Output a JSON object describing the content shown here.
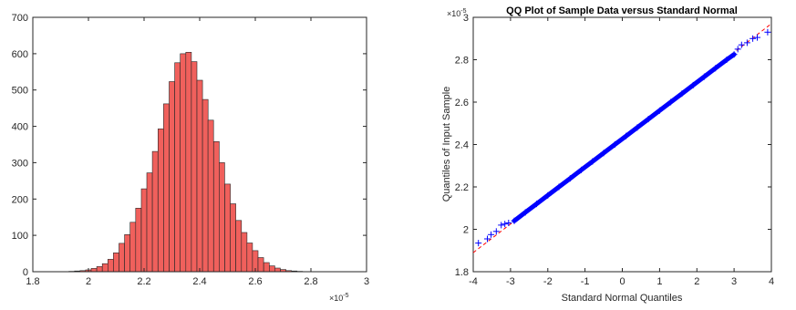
{
  "chart_data": [
    {
      "type": "bar",
      "subtype": "histogram",
      "title": "",
      "xlabel": "",
      "ylabel": "",
      "bar_color": "#f0605c",
      "edge_color": "#262626",
      "x_exponent": "×10",
      "x_exponent_power": "-5",
      "xlim": [
        1.8,
        3.0
      ],
      "ylim": [
        0,
        700
      ],
      "x_ticks": [
        "1.8",
        "2",
        "2.2",
        "2.4",
        "2.6",
        "2.8",
        "3"
      ],
      "x_tick_values": [
        1.8,
        2.0,
        2.2,
        2.4,
        2.6,
        2.8,
        3.0
      ],
      "y_ticks": [
        "0",
        "100",
        "200",
        "300",
        "400",
        "500",
        "600",
        "700"
      ],
      "y_tick_values": [
        0,
        100,
        200,
        300,
        400,
        500,
        600,
        700
      ],
      "bin_start": 1.93,
      "bin_width": 0.02,
      "values": [
        1,
        2,
        3,
        5,
        9,
        14,
        22,
        34,
        52,
        78,
        102,
        136,
        175,
        228,
        272,
        331,
        393,
        462,
        523,
        575,
        600,
        604,
        578,
        527,
        474,
        417,
        358,
        300,
        241,
        187,
        141,
        108,
        79,
        58,
        39,
        25,
        16,
        10,
        6,
        3,
        2,
        1
      ],
      "grid": false,
      "legend": "none"
    },
    {
      "type": "scatter",
      "subtype": "qq-plot",
      "title": "QQ Plot of Sample Data versus Standard Normal",
      "xlabel": "Standard Normal Quantiles",
      "ylabel": "Quantiles of Input Sample",
      "marker_color": "#0000ff",
      "line_color": "#ff0000",
      "y_exponent": "×10",
      "y_exponent_power": "-5",
      "xlim": [
        -4,
        4
      ],
      "ylim": [
        1.8,
        3.0
      ],
      "x_ticks": [
        "-4",
        "-3",
        "-2",
        "-1",
        "0",
        "1",
        "2",
        "3",
        "4"
      ],
      "x_tick_values": [
        -4,
        -3,
        -2,
        -1,
        0,
        1,
        2,
        3,
        4
      ],
      "y_ticks": [
        "1.8",
        "2",
        "2.2",
        "2.4",
        "2.6",
        "2.8",
        "3"
      ],
      "y_tick_values": [
        1.8,
        2.0,
        2.2,
        2.4,
        2.6,
        2.8,
        3.0
      ],
      "reference_line": {
        "slope": 0.135,
        "intercept": 2.43,
        "x_range": [
          -4,
          4
        ]
      },
      "points": [
        {
          "x": -3.86,
          "y": 1.935
        },
        {
          "x": -3.62,
          "y": 1.955
        },
        {
          "x": -3.52,
          "y": 1.975
        },
        {
          "x": -3.38,
          "y": 1.99
        },
        {
          "x": -3.25,
          "y": 2.02
        },
        {
          "x": -3.15,
          "y": 2.025
        },
        {
          "x": -3.05,
          "y": 2.03
        },
        {
          "x": -2.9,
          "y": 2.04
        },
        {
          "x": -2.6,
          "y": 2.08
        },
        {
          "x": -2.3,
          "y": 2.12
        },
        {
          "x": -2.0,
          "y": 2.16
        },
        {
          "x": -1.7,
          "y": 2.2
        },
        {
          "x": -1.4,
          "y": 2.24
        },
        {
          "x": -1.1,
          "y": 2.28
        },
        {
          "x": -0.8,
          "y": 2.32
        },
        {
          "x": -0.5,
          "y": 2.36
        },
        {
          "x": -0.2,
          "y": 2.4
        },
        {
          "x": 0.1,
          "y": 2.44
        },
        {
          "x": 0.4,
          "y": 2.48
        },
        {
          "x": 0.7,
          "y": 2.52
        },
        {
          "x": 1.0,
          "y": 2.56
        },
        {
          "x": 1.3,
          "y": 2.6
        },
        {
          "x": 1.6,
          "y": 2.64
        },
        {
          "x": 1.9,
          "y": 2.68
        },
        {
          "x": 2.2,
          "y": 2.72
        },
        {
          "x": 2.5,
          "y": 2.76
        },
        {
          "x": 2.8,
          "y": 2.8
        },
        {
          "x": 3.0,
          "y": 2.825
        },
        {
          "x": 3.1,
          "y": 2.85
        },
        {
          "x": 3.2,
          "y": 2.87
        },
        {
          "x": 3.35,
          "y": 2.88
        },
        {
          "x": 3.5,
          "y": 2.9
        },
        {
          "x": 3.62,
          "y": 2.905
        },
        {
          "x": 3.9,
          "y": 2.93
        }
      ],
      "grid": false,
      "legend": "none"
    }
  ]
}
